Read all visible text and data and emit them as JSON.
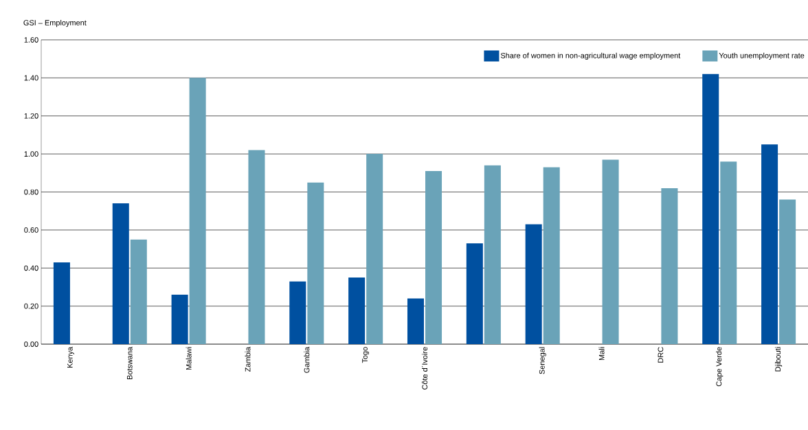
{
  "chart_data": {
    "type": "bar",
    "ylabel": "GSI – Employment",
    "categories": [
      "Kenya",
      "Botswana",
      "Malawi",
      "Zambia",
      "Gambia",
      "Togo",
      "Côte d´Ivoire",
      null,
      "Senegal",
      "Mali",
      "DRC",
      "Cape Verde",
      "Djibouti"
    ],
    "series": [
      {
        "name": "Share of women in non-agricultural wage employment",
        "color": "#0050a0",
        "values": [
          0.43,
          0.74,
          0.26,
          null,
          0.33,
          0.35,
          0.24,
          0.53,
          0.63,
          null,
          null,
          1.42,
          1.05
        ]
      },
      {
        "name": "Youth unemployment rate",
        "color": "#6aa3b8",
        "values": [
          null,
          0.55,
          1.4,
          1.02,
          0.85,
          1.0,
          0.91,
          0.94,
          0.93,
          0.97,
          0.82,
          0.96,
          0.76
        ]
      }
    ],
    "ylim": [
      0,
      1.6
    ],
    "yticks": [
      {
        "value": 0,
        "label": "0.00"
      },
      {
        "value": 0.2,
        "label": "0.20"
      },
      {
        "value": 0.4,
        "label": "0.40"
      },
      {
        "value": 0.6,
        "label": "0.60"
      },
      {
        "value": 0.8,
        "label": "0.80"
      },
      {
        "value": 1.0,
        "label": "1.00"
      },
      {
        "value": 1.2,
        "label": "1.20"
      },
      {
        "value": 1.4,
        "label": "1.40"
      },
      {
        "value": 1.6,
        "label": "1.60"
      }
    ],
    "grid": "y",
    "legend": "top right"
  }
}
